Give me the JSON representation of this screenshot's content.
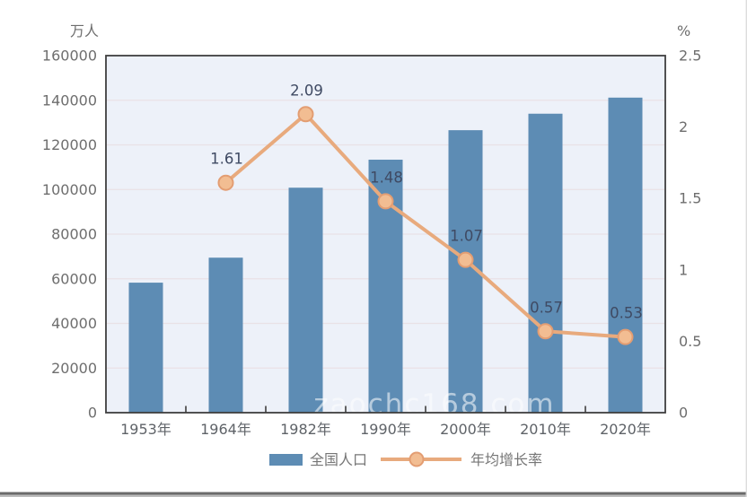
{
  "page": {
    "background": "#ffffff",
    "bottom_edge_dark": "#6a6a6a",
    "bottom_edge_light": "#bcbcbc",
    "right_edge_color": "#dcdcdc"
  },
  "watermark": {
    "text": "zaochc168.com",
    "color": "#ffffff",
    "opacity": 0.55
  },
  "chart_data": {
    "type": "bar",
    "title": "",
    "categories": [
      "1953年",
      "1964年",
      "1982年",
      "1990年",
      "2000年",
      "2010年",
      "2020年"
    ],
    "series": [
      {
        "name": "全国人口",
        "chart_type": "bar",
        "axis": "left",
        "color": "#5d8cb4",
        "values": [
          58260,
          69458,
          100818,
          113368,
          126583,
          133972,
          141178
        ]
      },
      {
        "name": "年均增长率",
        "chart_type": "line",
        "axis": "right",
        "color": "#e8aa7d",
        "marker_fill": "#f2bd92",
        "marker_stroke": "#e39d72",
        "values": [
          null,
          1.61,
          2.09,
          1.48,
          1.07,
          0.57,
          0.53
        ],
        "point_labels": [
          "",
          "1.61",
          "2.09",
          "1.48",
          "1.07",
          "0.57",
          "0.53"
        ]
      }
    ],
    "left_axis": {
      "unit": "万人",
      "min": 0,
      "max": 160000,
      "step": 20000,
      "tick_labels": [
        "0",
        "20000",
        "40000",
        "60000",
        "80000",
        "100000",
        "120000",
        "140000",
        "160000"
      ]
    },
    "right_axis": {
      "unit": "%",
      "min": 0,
      "max": 2.5,
      "step": 0.5,
      "tick_labels": [
        "0",
        "0.5",
        "1",
        "1.5",
        "2",
        "2.5"
      ]
    },
    "grid": true,
    "legend_position": "bottom",
    "colors": {
      "plot_bg": "#edf1f9",
      "grid_line": "#e9e1e6",
      "plot_border": "#3f3f3f",
      "tick_text": "#6e6e6e",
      "xlabel_text": "#5f6368",
      "point_label_text": "#3f4a63",
      "legend_text": "#767676"
    }
  }
}
